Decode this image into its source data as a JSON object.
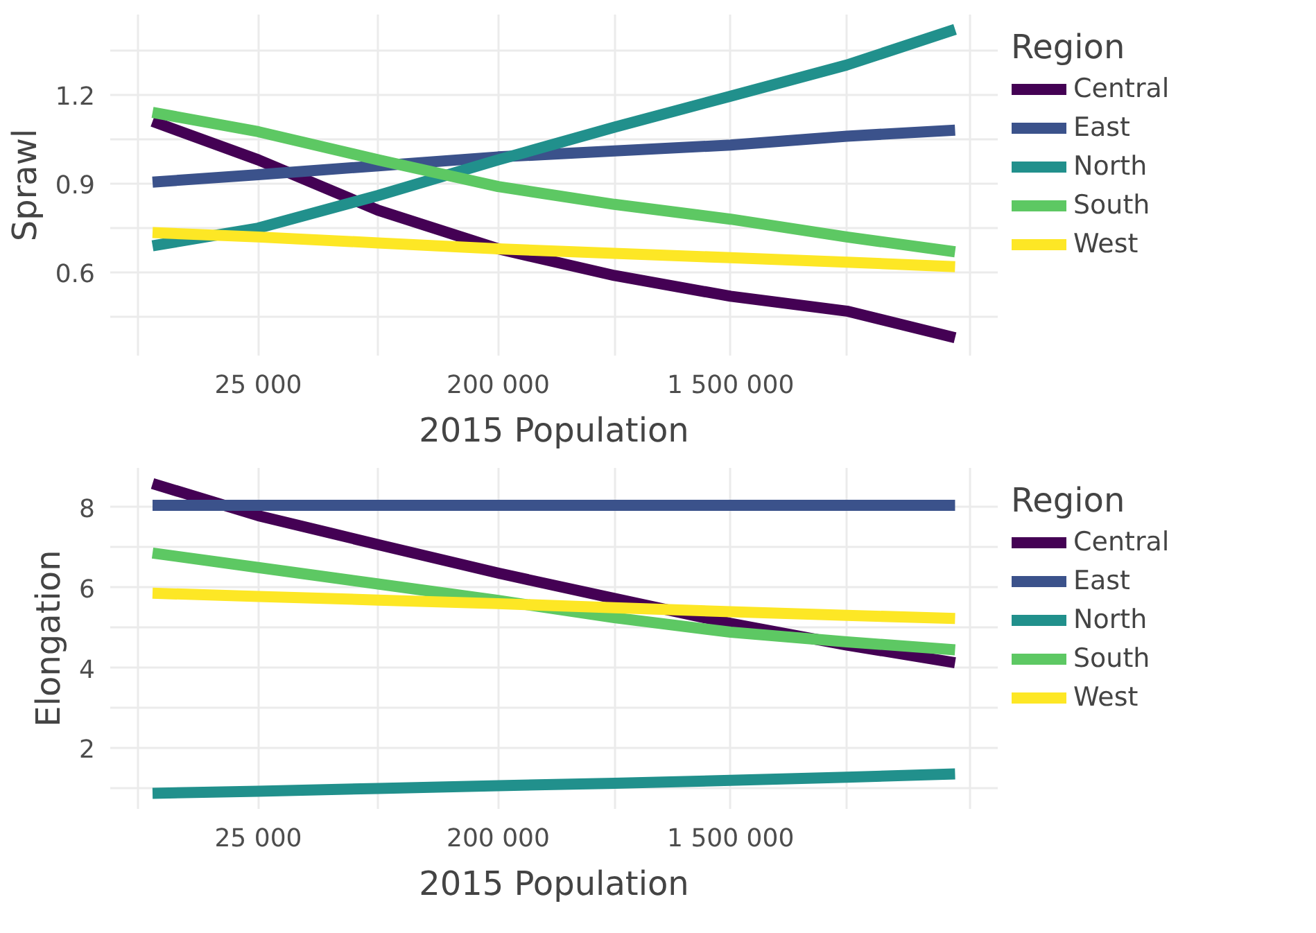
{
  "chart_data": [
    {
      "type": "line",
      "xlabel": "2015 Population",
      "ylabel": "Sprawl",
      "legend_title": "Region",
      "legend": "right",
      "grid": true,
      "log": "x",
      "x": [
        10000,
        25000,
        70711,
        200000,
        547723,
        1500000,
        4107919,
        10500000
      ],
      "xlim": [
        6930,
        15200000
      ],
      "xticks": [
        {
          "value": 8839,
          "label": null
        },
        25000,
        {
          "value": 70711,
          "label": null
        },
        200000,
        {
          "value": 547723,
          "label": null
        },
        1500000,
        {
          "value": 4107919,
          "label": null
        },
        {
          "value": 12000000,
          "label": null
        }
      ],
      "ylim": [
        0.32,
        1.47
      ],
      "yticks": [
        {
          "value": 0.45,
          "label": null
        },
        0.6,
        {
          "value": 0.75,
          "label": null
        },
        0.9,
        {
          "value": 1.05,
          "label": null
        },
        1.2,
        {
          "value": 1.35,
          "label": null
        }
      ],
      "series": [
        {
          "name": "Central",
          "color": "#440154",
          "values": [
            1.11,
            0.98,
            0.81,
            0.68,
            0.59,
            0.52,
            0.47,
            0.38
          ]
        },
        {
          "name": "East",
          "color": "#3b528b",
          "values": [
            0.905,
            0.93,
            0.96,
            0.99,
            1.01,
            1.03,
            1.06,
            1.08
          ]
        },
        {
          "name": "North",
          "color": "#21908c",
          "values": [
            0.69,
            0.75,
            0.86,
            0.98,
            1.09,
            1.195,
            1.3,
            1.42
          ]
        },
        {
          "name": "South",
          "color": "#5dc863",
          "values": [
            1.14,
            1.075,
            0.98,
            0.89,
            0.83,
            0.78,
            0.72,
            0.67
          ]
        },
        {
          "name": "West",
          "color": "#fde725",
          "values": [
            0.735,
            0.72,
            0.7,
            0.68,
            0.665,
            0.65,
            0.635,
            0.62
          ]
        }
      ]
    },
    {
      "type": "line",
      "xlabel": "2015 Population",
      "ylabel": "Elongation",
      "legend_title": "Region",
      "legend": "right",
      "grid": true,
      "log": "x",
      "x": [
        10000,
        25000,
        70711,
        200000,
        547723,
        1500000,
        4107919,
        10500000
      ],
      "xlim": [
        6930,
        15200000
      ],
      "xticks": [
        {
          "value": 8839,
          "label": null
        },
        25000,
        {
          "value": 70711,
          "label": null
        },
        200000,
        {
          "value": 547723,
          "label": null
        },
        1500000,
        {
          "value": 4107919,
          "label": null
        },
        {
          "value": 12000000,
          "label": null
        }
      ],
      "ylim": [
        0.49,
        8.98
      ],
      "yticks": [
        {
          "value": 1,
          "label": null
        },
        2,
        {
          "value": 3,
          "label": null
        },
        4,
        {
          "value": 5,
          "label": null
        },
        6,
        {
          "value": 7,
          "label": null
        },
        8
      ],
      "series": [
        {
          "name": "Central",
          "color": "#440154",
          "values": [
            8.59,
            7.79,
            7.07,
            6.36,
            5.73,
            5.11,
            4.57,
            4.13
          ]
        },
        {
          "name": "East",
          "color": "#3b528b",
          "values": [
            8.05,
            8.05,
            8.05,
            8.05,
            8.05,
            8.05,
            8.05,
            8.05
          ]
        },
        {
          "name": "North",
          "color": "#21908c",
          "values": [
            0.88,
            0.93,
            1.0,
            1.07,
            1.13,
            1.2,
            1.28,
            1.36
          ]
        },
        {
          "name": "South",
          "color": "#5dc863",
          "values": [
            6.86,
            6.5,
            6.09,
            5.68,
            5.25,
            4.89,
            4.65,
            4.45
          ]
        },
        {
          "name": "West",
          "color": "#fde725",
          "values": [
            5.86,
            5.78,
            5.69,
            5.6,
            5.5,
            5.4,
            5.31,
            5.23
          ]
        }
      ]
    }
  ]
}
